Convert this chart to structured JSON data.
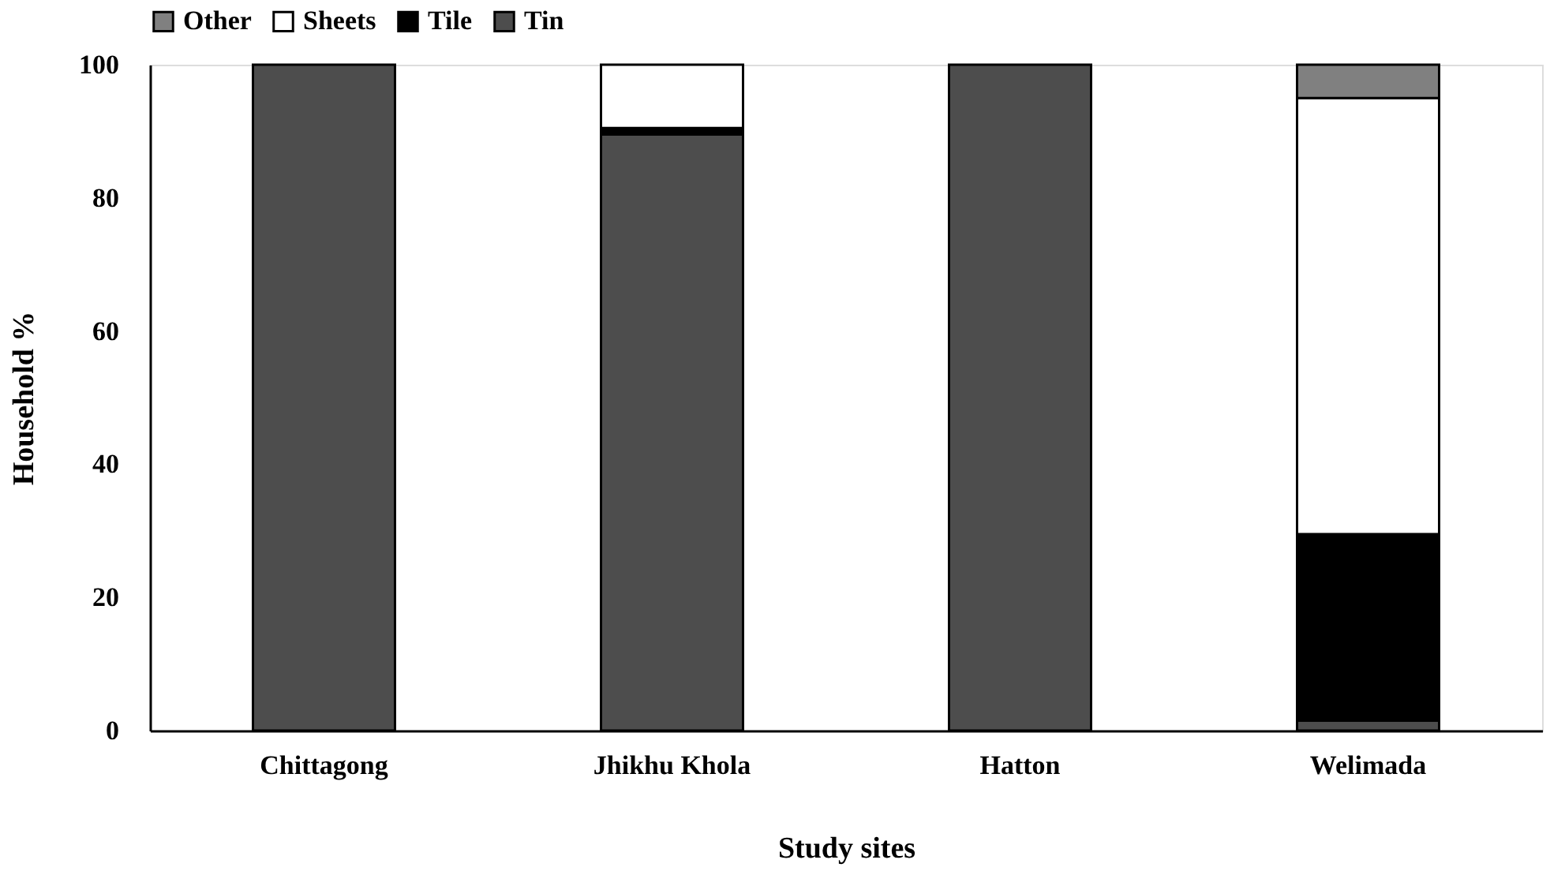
{
  "chart_data": {
    "type": "bar",
    "stacked": true,
    "xlabel": "Study sites",
    "ylabel": "Household %",
    "categories": [
      "Chittagong",
      "Jhikhu Khola",
      "Hatton",
      "Welimada"
    ],
    "series": [
      {
        "name": "Tin",
        "color": "#4d4d4d",
        "values": [
          100,
          89.5,
          100,
          1.5
        ]
      },
      {
        "name": "Tile",
        "color": "#000000",
        "values": [
          0,
          1,
          0,
          28
        ]
      },
      {
        "name": "Sheets",
        "color": "#ffffff",
        "values": [
          0,
          9.5,
          0,
          65.5
        ]
      },
      {
        "name": "Other",
        "color": "#808080",
        "values": [
          0,
          0,
          0,
          5
        ]
      }
    ],
    "ylim": [
      0,
      100
    ],
    "yticks": [
      0,
      20,
      40,
      60,
      80,
      100
    ],
    "grid": false,
    "legend": "top"
  }
}
